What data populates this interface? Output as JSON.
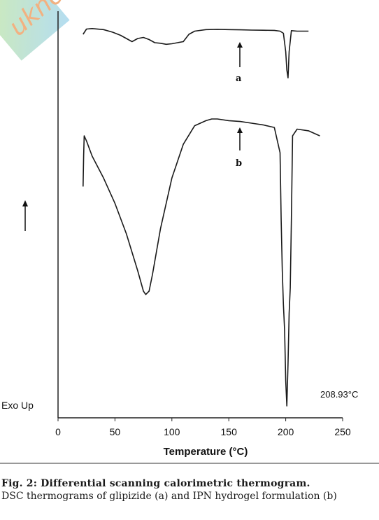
{
  "watermark": {
    "text": "ukno"
  },
  "chart_data": {
    "type": "line",
    "x_ticks": [
      "0",
      "50",
      "100",
      "150",
      "200",
      "250"
    ],
    "xlim": [
      0,
      250
    ],
    "xlabel": "Temperature (°C)",
    "ylabel": "Exo Up",
    "y_ticks": [],
    "peak_annotation": "208.93°C",
    "series": [
      {
        "name": "a",
        "x": [
          22,
          25,
          30,
          40,
          48,
          55,
          60,
          65,
          70,
          75,
          80,
          85,
          90,
          95,
          100,
          105,
          110,
          115,
          120,
          130,
          140,
          150,
          160,
          170,
          180,
          190,
          195,
          198,
          200,
          201,
          202,
          203,
          205,
          210,
          215,
          220
        ],
        "y": [
          0.88,
          0.98,
          0.99,
          0.97,
          0.92,
          0.86,
          0.8,
          0.74,
          0.8,
          0.82,
          0.78,
          0.72,
          0.71,
          0.69,
          0.7,
          0.72,
          0.74,
          0.88,
          0.94,
          0.97,
          0.975,
          0.97,
          0.965,
          0.96,
          0.958,
          0.955,
          0.94,
          0.9,
          0.55,
          0.2,
          0.05,
          0.55,
          0.95,
          0.94,
          0.94,
          0.94
        ]
      },
      {
        "name": "b",
        "x": [
          22,
          22.5,
          23,
          25,
          30,
          40,
          50,
          60,
          70,
          75,
          77,
          80,
          83,
          90,
          100,
          110,
          120,
          130,
          135,
          140,
          150,
          160,
          170,
          180,
          190,
          195,
          196,
          197,
          198,
          199,
          200,
          201,
          202,
          203,
          204,
          205,
          206,
          210,
          220,
          230
        ],
        "y": [
          0.5,
          0.68,
          0.8,
          0.77,
          0.68,
          0.55,
          0.4,
          0.22,
          0.0,
          -0.12,
          -0.14,
          -0.12,
          -0.02,
          0.25,
          0.55,
          0.75,
          0.86,
          0.89,
          0.9,
          0.9,
          0.89,
          0.885,
          0.875,
          0.865,
          0.85,
          0.7,
          0.3,
          0.0,
          -0.2,
          -0.35,
          -0.65,
          -0.8,
          -0.55,
          -0.25,
          -0.1,
          0.3,
          0.8,
          0.84,
          0.83,
          0.8
        ]
      }
    ]
  },
  "caption": {
    "figure_label": "Fig. 2: Differential scanning calorimetric thermogram.",
    "text": "DSC thermograms of glipizide (a) and IPN hydrogel formulation (b)"
  }
}
